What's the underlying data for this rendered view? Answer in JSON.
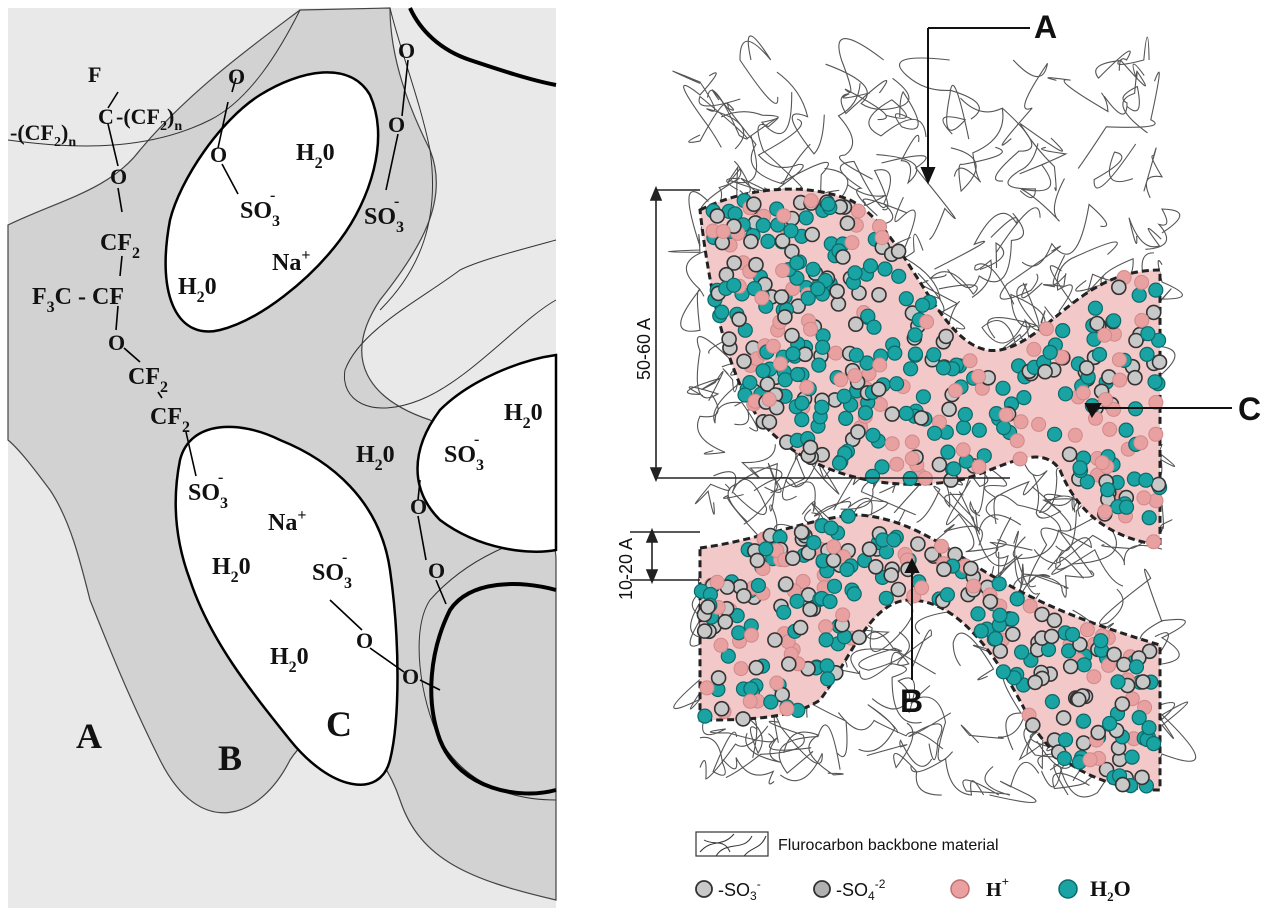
{
  "left_panel": {
    "region_labels": {
      "A": "A",
      "B": "B",
      "C": "C"
    },
    "chem": {
      "f_top": "F",
      "c_top": "C",
      "cf2n_top": "-(CF",
      "cf2n_top_sub": "2",
      "cf2n_top_tail": ")",
      "n_top": "n",
      "cf2n_left": "-(CF",
      "cf2n_left_sub": "2",
      "cf2n_left_tail": ")",
      "n_left": "n",
      "o": "O",
      "cf2": "CF",
      "sub2": "2",
      "sub3": "3",
      "f3c": "F",
      "f3c_tail": "C - CF",
      "so3": "SO",
      "minus": "-",
      "plus": "+",
      "h2o": "H",
      "h2o_tail": "0",
      "na": "Na"
    }
  },
  "right_panel": {
    "labels": {
      "A": "A",
      "B": "B",
      "C": "C"
    },
    "dimensions": {
      "large": "50-60 A",
      "small": "10-20 A"
    },
    "legend": {
      "backbone": "Flurocarbon backbone material",
      "so3": "-SO",
      "so3_sup": "3",
      "so3_charge": "-",
      "so4": "-SO",
      "so4_sup": "4",
      "so4_charge": "-2",
      "h": "H",
      "h_charge": "+",
      "h2o": "H",
      "h2o_sub": "2",
      "h2o_tail": "O"
    },
    "colors": {
      "water": "#1aa3a3",
      "proton": "#e8a0a0",
      "sulfonate": "#c8c8c8"
    }
  }
}
